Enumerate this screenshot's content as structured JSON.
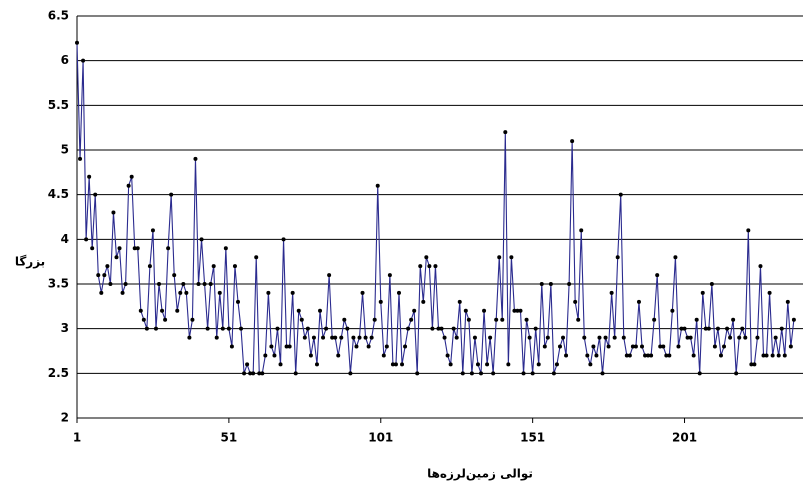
{
  "chart_data": {
    "type": "line",
    "x_label": "توالی زمین‌لرزه‌ها",
    "y_label": "بزرگا",
    "xlim": [
      1,
      240
    ],
    "xticks": [
      1,
      51,
      101,
      151,
      201
    ],
    "ylim": [
      2,
      6.5
    ],
    "yticks": [
      2,
      2.5,
      3,
      3.5,
      4,
      4.5,
      5,
      5.5,
      6,
      6.5
    ],
    "grid": true,
    "x": [
      1,
      2,
      3,
      4,
      5,
      6,
      7,
      8,
      9,
      10,
      11,
      12,
      13,
      14,
      15,
      16,
      17,
      18,
      19,
      20,
      21,
      22,
      23,
      24,
      25,
      26,
      27,
      28,
      29,
      30,
      31,
      32,
      33,
      34,
      35,
      36,
      37,
      38,
      39,
      40,
      41,
      42,
      43,
      44,
      45,
      46,
      47,
      48,
      49,
      50,
      51,
      52,
      53,
      54,
      55,
      56,
      57,
      58,
      59,
      60,
      61,
      62,
      63,
      64,
      65,
      66,
      67,
      68,
      69,
      70,
      71,
      72,
      73,
      74,
      75,
      76,
      77,
      78,
      79,
      80,
      81,
      82,
      83,
      84,
      85,
      86,
      87,
      88,
      89,
      90,
      91,
      92,
      93,
      94,
      95,
      96,
      97,
      98,
      99,
      100,
      101,
      102,
      103,
      104,
      105,
      106,
      107,
      108,
      109,
      110,
      111,
      112,
      113,
      114,
      115,
      116,
      117,
      118,
      119,
      120,
      121,
      122,
      123,
      124,
      125,
      126,
      127,
      128,
      129,
      130,
      131,
      132,
      133,
      134,
      135,
      136,
      137,
      138,
      139,
      140,
      141,
      142,
      143,
      144,
      145,
      146,
      147,
      148,
      149,
      150,
      151,
      152,
      153,
      154,
      155,
      156,
      157,
      158,
      159,
      160,
      161,
      162,
      163,
      164,
      165,
      166,
      167,
      168,
      169,
      170,
      171,
      172,
      173,
      174,
      175,
      176,
      177,
      178,
      179,
      180,
      181,
      182,
      183,
      184,
      185,
      186,
      187,
      188,
      189,
      190,
      191,
      192,
      193,
      194,
      195,
      196,
      197,
      198,
      199,
      200,
      201,
      202,
      203,
      204,
      205,
      206,
      207,
      208,
      209,
      210,
      211,
      212,
      213,
      214,
      215,
      216,
      217,
      218,
      219,
      220,
      221,
      222,
      223,
      224,
      225,
      226,
      227,
      228,
      229,
      230,
      231,
      232,
      233,
      234,
      235,
      236,
      237
    ],
    "series": [
      {
        "color": "#2b2b8f",
        "marker_color": "#000000",
        "values": [
          6.2,
          4.9,
          6.0,
          4.0,
          4.7,
          3.9,
          4.5,
          3.6,
          3.4,
          3.6,
          3.7,
          3.5,
          4.3,
          3.8,
          3.9,
          3.4,
          3.5,
          4.6,
          4.7,
          3.9,
          3.9,
          3.2,
          3.1,
          3.0,
          3.7,
          4.1,
          3.0,
          3.5,
          3.2,
          3.1,
          3.9,
          4.5,
          3.6,
          3.2,
          3.4,
          3.5,
          3.4,
          2.9,
          3.1,
          4.9,
          3.5,
          4.0,
          3.5,
          3.0,
          3.5,
          3.7,
          2.9,
          3.4,
          3.0,
          3.9,
          3.0,
          2.8,
          3.7,
          3.3,
          3.0,
          2.5,
          2.6,
          2.5,
          2.5,
          3.8,
          2.5,
          2.5,
          2.7,
          3.4,
          2.8,
          2.7,
          3.0,
          2.6,
          4.0,
          2.8,
          2.8,
          3.4,
          2.5,
          3.2,
          3.1,
          2.9,
          3.0,
          2.7,
          2.9,
          2.6,
          3.2,
          2.9,
          3.0,
          3.6,
          2.9,
          2.9,
          2.7,
          2.9,
          3.1,
          3.0,
          2.5,
          2.9,
          2.8,
          2.9,
          3.4,
          2.9,
          2.8,
          2.9,
          3.1,
          4.6,
          3.3,
          2.7,
          2.8,
          3.6,
          2.6,
          2.6,
          3.4,
          2.6,
          2.8,
          3.0,
          3.1,
          3.2,
          2.5,
          3.7,
          3.3,
          3.8,
          3.7,
          3.0,
          3.7,
          3.0,
          3.0,
          2.9,
          2.7,
          2.6,
          3.0,
          2.9,
          3.3,
          2.5,
          3.2,
          3.1,
          2.5,
          2.9,
          2.6,
          2.5,
          3.2,
          2.6,
          2.9,
          2.5,
          3.1,
          3.8,
          3.1,
          5.2,
          2.6,
          3.8,
          3.2,
          3.2,
          3.2,
          2.5,
          3.1,
          2.9,
          2.5,
          3.0,
          2.6,
          3.5,
          2.8,
          2.9,
          3.5,
          2.5,
          2.6,
          2.8,
          2.9,
          2.7,
          3.5,
          5.1,
          3.3,
          3.1,
          4.1,
          2.9,
          2.7,
          2.6,
          2.8,
          2.7,
          2.9,
          2.5,
          2.9,
          2.8,
          3.4,
          2.9,
          3.8,
          4.5,
          2.9,
          2.7,
          2.7,
          2.8,
          2.8,
          3.3,
          2.8,
          2.7,
          2.7,
          2.7,
          3.1,
          3.6,
          2.8,
          2.8,
          2.7,
          2.7,
          3.2,
          3.8,
          2.8,
          3.0,
          3.0,
          2.9,
          2.9,
          2.7,
          3.1,
          2.5,
          3.4,
          3.0,
          3.0,
          3.5,
          2.8,
          3.0,
          2.7,
          2.8,
          3.0,
          2.9,
          3.1,
          2.5,
          2.9,
          3.0,
          2.9,
          4.1,
          2.6,
          2.6,
          2.9,
          3.7,
          2.7,
          2.7,
          3.4,
          2.7,
          2.9,
          2.7,
          3.0,
          2.7,
          3.3,
          2.8,
          3.1
        ]
      }
    ]
  }
}
